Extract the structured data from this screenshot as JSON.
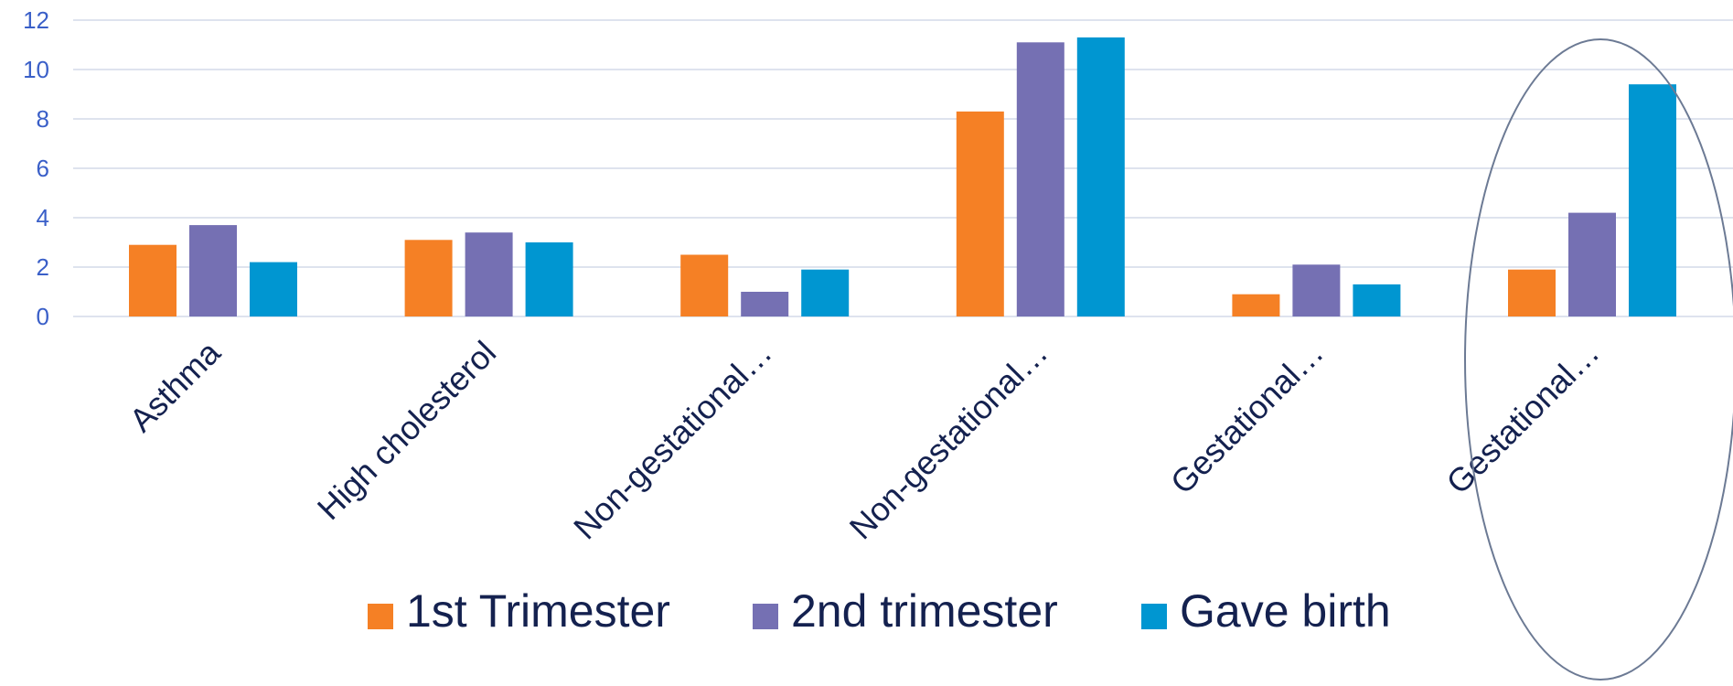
{
  "chart_data": {
    "type": "bar",
    "categories": [
      "Asthma",
      "High cholesterol",
      "Non-gestational…",
      "Non-gestational…",
      "Gestational…",
      "Gestational…"
    ],
    "series": [
      {
        "name": "1st Trimester",
        "color": "#f58025",
        "values": [
          2.9,
          3.1,
          2.5,
          8.3,
          0.9,
          1.9
        ]
      },
      {
        "name": "2nd trimester",
        "color": "#7570b3",
        "values": [
          3.7,
          3.4,
          1.0,
          11.1,
          2.1,
          4.2
        ]
      },
      {
        "name": "Gave birth",
        "color": "#0096d1",
        "values": [
          2.2,
          3.0,
          1.9,
          11.3,
          1.3,
          9.4
        ]
      }
    ],
    "y_ticks": [
      "0",
      "2",
      "4",
      "6",
      "8",
      "10",
      "12"
    ],
    "ylim": [
      0,
      12
    ],
    "grid": true,
    "legend_position": "bottom",
    "highlight": {
      "shape": "ellipse",
      "target_category_index": 5
    },
    "colors": {
      "tick_label": "#3a5fc8",
      "category_label": "#14214f",
      "legend_text": "#14214f",
      "gridline": "#d3dae8",
      "highlight_stroke": "#6c7a94"
    }
  }
}
